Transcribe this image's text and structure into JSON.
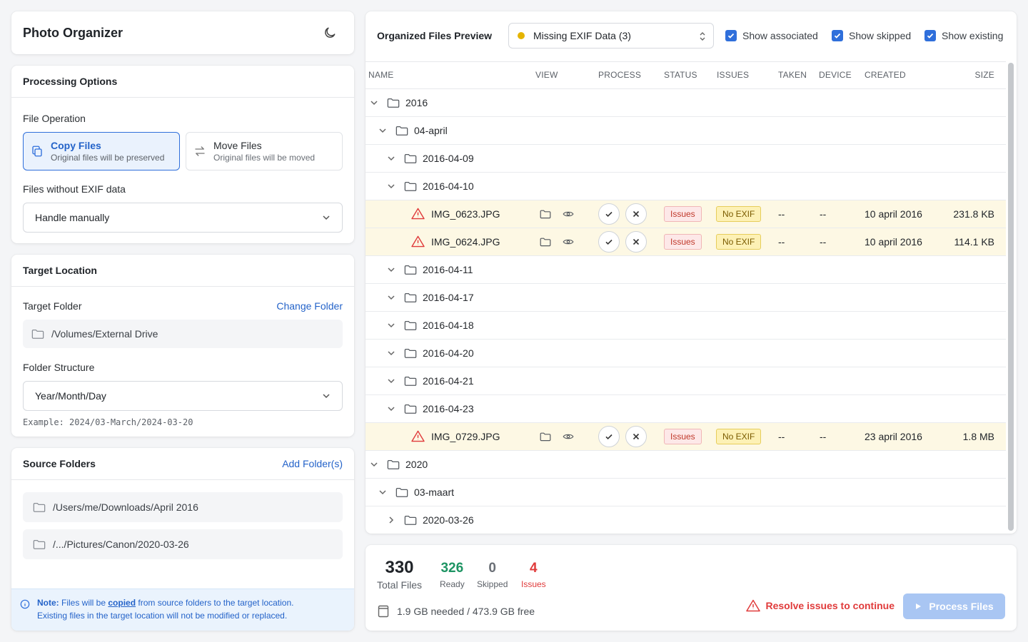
{
  "app": {
    "title": "Photo Organizer",
    "theme_icon": "moon-icon"
  },
  "processing": {
    "title": "Processing Options",
    "file_operation_label": "File Operation",
    "copy": {
      "title": "Copy Files",
      "subtitle": "Original files will be preserved"
    },
    "move": {
      "title": "Move Files",
      "subtitle": "Original files will be moved"
    },
    "no_exif_label": "Files without EXIF data",
    "no_exif_value": "Handle manually"
  },
  "target": {
    "title": "Target Location",
    "folder_label": "Target Folder",
    "change_link": "Change Folder",
    "folder_path": "/Volumes/External Drive",
    "structure_label": "Folder Structure",
    "structure_value": "Year/Month/Day",
    "example": "Example: 2024/03-March/2024-03-20"
  },
  "sources": {
    "title": "Source Folders",
    "add_link": "Add Folder(s)",
    "folders": [
      "/Users/me/Downloads/April 2016",
      "/.../Pictures/Canon/2020-03-26"
    ],
    "note_prefix": "Note:",
    "note_a": " Files will be ",
    "note_copied": "copied",
    "note_b": " from source folders to the target location.",
    "note_line2": "Existing files in the target location will not be modified or replaced."
  },
  "preview": {
    "title": "Organized Files Preview",
    "filter_value": "Missing EXIF Data (3)",
    "filter_dot_color": "#e5b400",
    "show_associated": "Show associated",
    "show_skipped": "Show skipped",
    "show_existing": "Show existing",
    "columns": {
      "name": "NAME",
      "view": "VIEW",
      "process": "PROCESS",
      "status": "STATUS",
      "issues": "ISSUES",
      "taken": "TAKEN",
      "device": "DEVICE",
      "created": "CREATED",
      "size": "SIZE"
    },
    "rows": [
      {
        "kind": "folder",
        "level": 0,
        "label": "2016",
        "expanded": true
      },
      {
        "kind": "folder",
        "level": 1,
        "label": "04-april",
        "expanded": true
      },
      {
        "kind": "folder",
        "level": 2,
        "label": "2016-04-09",
        "expanded": true
      },
      {
        "kind": "folder",
        "level": 2,
        "label": "2016-04-10",
        "expanded": true
      },
      {
        "kind": "file",
        "name": "IMG_0623.JPG",
        "status": "Issues",
        "issue": "No EXIF",
        "taken": "--",
        "device": "--",
        "created": "10 april 2016",
        "size": "231.8 KB"
      },
      {
        "kind": "file",
        "name": "IMG_0624.JPG",
        "status": "Issues",
        "issue": "No EXIF",
        "taken": "--",
        "device": "--",
        "created": "10 april 2016",
        "size": "114.1 KB"
      },
      {
        "kind": "folder",
        "level": 2,
        "label": "2016-04-11",
        "expanded": true
      },
      {
        "kind": "folder",
        "level": 2,
        "label": "2016-04-17",
        "expanded": true
      },
      {
        "kind": "folder",
        "level": 2,
        "label": "2016-04-18",
        "expanded": true
      },
      {
        "kind": "folder",
        "level": 2,
        "label": "2016-04-20",
        "expanded": true
      },
      {
        "kind": "folder",
        "level": 2,
        "label": "2016-04-21",
        "expanded": true
      },
      {
        "kind": "folder",
        "level": 2,
        "label": "2016-04-23",
        "expanded": true
      },
      {
        "kind": "file",
        "name": "IMG_0729.JPG",
        "status": "Issues",
        "issue": "No EXIF",
        "taken": "--",
        "device": "--",
        "created": "23 april 2016",
        "size": "1.8 MB"
      },
      {
        "kind": "folder",
        "level": 0,
        "label": "2020",
        "expanded": true
      },
      {
        "kind": "folder",
        "level": 1,
        "label": "03-maart",
        "expanded": true
      },
      {
        "kind": "folder",
        "level": 2,
        "label": "2020-03-26",
        "expanded": false
      }
    ]
  },
  "summary": {
    "total": "330",
    "total_label": "Total Files",
    "ready": "326",
    "ready_label": "Ready",
    "skipped": "0",
    "skipped_label": "Skipped",
    "issues": "4",
    "issues_label": "Issues",
    "space": "1.9 GB needed / 473.9 GB free",
    "resolve_msg": "Resolve issues to continue",
    "process_btn": "Process Files",
    "colors": {
      "ready": "#1e9463",
      "issues": "#e03b3b",
      "accent": "#2f6fdb"
    }
  }
}
